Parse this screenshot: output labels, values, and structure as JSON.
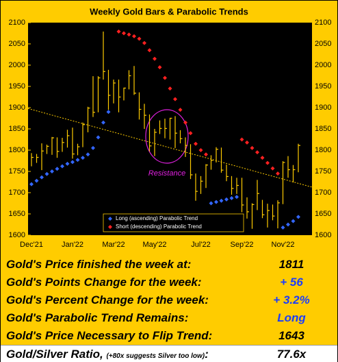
{
  "chart_data": {
    "type": "ohlc",
    "title": "Weekly Gold Bars & Parabolic Trends",
    "categories": [
      "Dec'21",
      null,
      null,
      null,
      null,
      null,
      null,
      null,
      "Jan'22",
      null,
      null,
      null,
      null,
      null,
      null,
      null,
      "Mar'22",
      null,
      null,
      null,
      null,
      null,
      null,
      null,
      "May'22",
      null,
      null,
      null,
      null,
      null,
      null,
      null,
      null,
      "Jul'22",
      null,
      null,
      null,
      null,
      null,
      null,
      null,
      "Sep'22",
      null,
      null,
      null,
      null,
      null,
      null,
      null,
      "Nov'22",
      null,
      null,
      null
    ],
    "bars": {
      "color": "#ffcc00",
      "high": [
        1793,
        1791,
        1816,
        1813,
        1831,
        1830,
        1829,
        1848,
        1853,
        1815,
        1865,
        1902,
        1974,
        1974,
        2079,
        1989,
        1966,
        1966,
        1947,
        1988,
        1998,
        1936,
        1909,
        1884,
        1850,
        1870,
        1874,
        1876,
        1880,
        1847,
        1830,
        1814,
        1745,
        1739,
        1767,
        1788,
        1807,
        1806,
        1766,
        1739,
        1735,
        1735,
        1689,
        1675,
        1730,
        1683,
        1674,
        1672,
        1682,
        1774,
        1786,
        1765,
        1815
      ],
      "low": [
        1762,
        1770,
        1753,
        1791,
        1789,
        1782,
        1796,
        1806,
        1780,
        1788,
        1807,
        1842,
        1878,
        1889,
        1966,
        1895,
        1910,
        1889,
        1917,
        1943,
        1930,
        1872,
        1850,
        1797,
        1786,
        1838,
        1828,
        1825,
        1805,
        1816,
        1784,
        1732,
        1681,
        1697,
        1711,
        1754,
        1771,
        1747,
        1727,
        1695,
        1697,
        1654,
        1639,
        1615,
        1659,
        1640,
        1618,
        1635,
        1616,
        1673,
        1735,
        1724,
        1748
      ],
      "close": [
        1783,
        1783,
        1798,
        1809,
        1829,
        1797,
        1818,
        1834,
        1791,
        1808,
        1860,
        1899,
        1889,
        1970,
        1985,
        1929,
        1958,
        1925,
        1946,
        1975,
        1934,
        1896,
        1882,
        1810,
        1842,
        1851,
        1851,
        1875,
        1840,
        1827,
        1811,
        1742,
        1703,
        1727,
        1765,
        1776,
        1802,
        1753,
        1738,
        1710,
        1717,
        1671,
        1655,
        1672,
        1698,
        1648,
        1658,
        1645,
        1676,
        1771,
        1754,
        1754,
        1811
      ]
    },
    "series": [
      {
        "name": "Long (ascending) Parabolic Trend",
        "color": "#3366ff",
        "values": [
          1720,
          1728,
          1736,
          1744,
          1750,
          1756,
          1762,
          1768,
          1772,
          1777,
          1782,
          1790,
          1805,
          1830,
          1865,
          1890,
          null,
          null,
          null,
          null,
          null,
          null,
          null,
          null,
          null,
          null,
          null,
          null,
          null,
          null,
          null,
          null,
          null,
          null,
          null,
          1675,
          1678,
          1681,
          1684,
          1687,
          1690,
          null,
          null,
          null,
          null,
          null,
          null,
          null,
          null,
          1618,
          1625,
          1633,
          1643
        ]
      },
      {
        "name": "Short (descending) Parabolic Trend",
        "color": "#ff2020",
        "values": [
          null,
          null,
          null,
          null,
          null,
          null,
          null,
          null,
          null,
          null,
          null,
          null,
          null,
          null,
          null,
          null,
          null,
          2079,
          2075,
          2072,
          2068,
          2062,
          2052,
          2035,
          2015,
          1995,
          1970,
          1945,
          1920,
          1895,
          1865,
          1840,
          1815,
          1800,
          1790,
          null,
          null,
          null,
          null,
          null,
          null,
          1825,
          1818,
          1805,
          1795,
          1782,
          1770,
          1757,
          1745,
          null,
          null,
          null,
          null
        ]
      }
    ],
    "trend_line": {
      "color": "#ffcc00",
      "values": [
        1898,
        1713
      ]
    },
    "annotation": "Resistance",
    "ylim": [
      1600,
      2100
    ],
    "yticks": [
      1600,
      1650,
      1700,
      1750,
      1800,
      1850,
      1900,
      1950,
      2000,
      2050,
      2100
    ]
  },
  "summary": {
    "rows": [
      {
        "label": "Gold's Price finished the week at:",
        "value": "1811",
        "color": "#000000"
      },
      {
        "label": "Gold's Points Change for the week:",
        "value": "+ 56",
        "color": "#1a3cff"
      },
      {
        "label": "Gold's Percent Change for the week:",
        "value": "+ 3.2%",
        "color": "#1a3cff"
      },
      {
        "label": "Gold's Parabolic Trend Remains:",
        "value": "Long",
        "color": "#1a3cff"
      },
      {
        "label": "Gold's Price Necessary to Flip Trend:",
        "value": "1643",
        "color": "#000000"
      }
    ],
    "ratio": {
      "label": "Gold/Silver Ratio,",
      "note": "(+80x suggests Silver too low)",
      "colon": ":",
      "value": "77.6x"
    }
  }
}
